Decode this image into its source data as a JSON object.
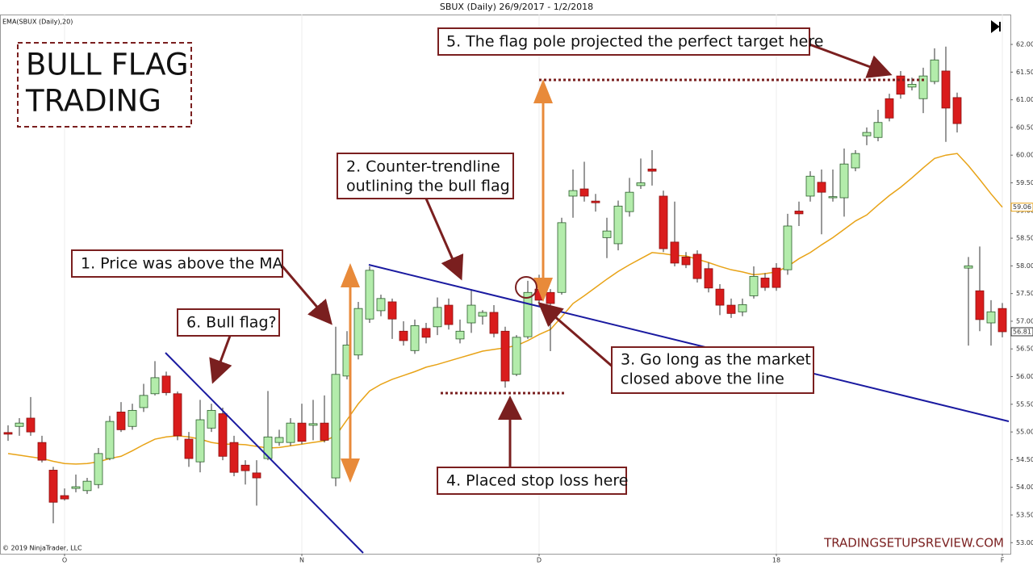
{
  "chart_data": {
    "type": "candlestick",
    "title": "SBUX (Daily)  26/9/2017 - 1/2/2018",
    "categories": [
      null,
      null,
      null,
      null,
      null,
      "O",
      null,
      null,
      null,
      null,
      null,
      null,
      null,
      null,
      null,
      null,
      null,
      null,
      null,
      null,
      null,
      null,
      null,
      null,
      null,
      null,
      "N",
      null,
      null,
      null,
      null,
      null,
      null,
      null,
      null,
      null,
      null,
      null,
      null,
      null,
      null,
      null,
      null,
      null,
      null,
      null,
      null,
      "D",
      null,
      null,
      null,
      null,
      null,
      null,
      null,
      null,
      null,
      null,
      null,
      null,
      null,
      null,
      null,
      null,
      null,
      null,
      null,
      null,
      "18",
      null,
      null,
      null,
      null,
      null,
      null,
      null,
      null,
      null,
      null,
      null,
      null,
      null,
      null,
      null,
      null,
      null,
      null,
      null,
      "F"
    ],
    "candles": {
      "up_color": "#b3ecab",
      "down_color": "#d91c1c",
      "open": [
        54.99,
        55.1,
        55.25,
        54.81,
        54.31,
        53.85,
        53.98,
        53.94,
        54.05,
        54.52,
        55.36,
        55.1,
        55.44,
        55.69,
        56.01,
        55.69,
        54.87,
        54.46,
        55.07,
        55.33,
        54.81,
        54.4,
        54.26,
        54.52,
        54.81,
        54.81,
        55.16,
        55.12,
        55.16,
        54.17,
        56.01,
        56.39,
        57.04,
        57.19,
        57.35,
        56.82,
        56.47,
        56.87,
        56.9,
        57.29,
        56.68,
        56.97,
        57.09,
        57.16,
        56.82,
        56.04,
        56.72,
        57.58,
        57.52,
        57.52,
        59.26,
        59.39,
        59.17,
        58.51,
        58.4,
        58.98,
        59.45,
        59.75,
        59.26,
        58.43,
        58.16,
        58.21,
        57.95,
        57.58,
        57.29,
        57.17,
        57.46,
        57.78,
        57.96,
        57.93,
        58.99,
        59.26,
        59.51,
        59.23,
        59.23,
        59.77,
        60.35,
        60.32,
        61.02,
        61.43,
        61.23,
        61.02,
        61.33,
        61.52,
        61.04,
        57.96,
        57.55,
        56.97,
        57.23
      ],
      "high": [
        55.12,
        55.25,
        55.63,
        54.93,
        54.37,
        53.98,
        54.23,
        54.17,
        54.71,
        55.29,
        55.54,
        55.51,
        55.87,
        56.28,
        56.09,
        55.73,
        55.0,
        55.58,
        55.51,
        55.44,
        54.93,
        54.49,
        54.49,
        55.74,
        55.04,
        55.25,
        55.51,
        55.58,
        55.66,
        56.9,
        56.82,
        57.35,
        57.99,
        57.48,
        57.41,
        57.0,
        57.03,
        56.97,
        57.43,
        57.41,
        57.03,
        57.58,
        57.2,
        57.29,
        56.9,
        56.75,
        57.73,
        57.84,
        57.58,
        58.87,
        59.74,
        59.88,
        59.3,
        58.87,
        59.18,
        59.59,
        59.94,
        60.09,
        59.36,
        59.16,
        58.25,
        58.28,
        58.06,
        57.67,
        57.41,
        57.41,
        57.99,
        57.87,
        58.05,
        58.94,
        59.16,
        59.71,
        59.74,
        59.74,
        60.12,
        60.09,
        60.5,
        60.82,
        61.11,
        61.52,
        61.4,
        61.58,
        61.93,
        61.96,
        61.13,
        58.16,
        58.35,
        57.38,
        57.33
      ],
      "low": [
        54.84,
        54.93,
        54.93,
        54.45,
        53.35,
        53.76,
        53.91,
        53.88,
        53.98,
        54.49,
        55.0,
        55.04,
        55.36,
        55.66,
        55.66,
        54.85,
        54.37,
        54.27,
        55.0,
        54.49,
        54.2,
        54.05,
        53.67,
        54.49,
        54.75,
        54.75,
        54.78,
        54.85,
        54.81,
        54.02,
        55.95,
        56.31,
        56.97,
        57.09,
        56.68,
        56.56,
        56.41,
        56.6,
        56.75,
        56.85,
        56.6,
        56.79,
        56.94,
        56.71,
        55.8,
        56.01,
        56.68,
        57.26,
        56.46,
        57.48,
        58.87,
        59.16,
        58.98,
        58.14,
        58.28,
        58.89,
        59.39,
        59.45,
        58.25,
        57.99,
        57.96,
        57.7,
        57.52,
        57.11,
        57.06,
        57.09,
        57.41,
        57.55,
        57.55,
        57.84,
        58.72,
        59.16,
        58.57,
        59.16,
        58.89,
        59.71,
        60.18,
        60.25,
        60.61,
        61.02,
        61.17,
        60.76,
        61.28,
        60.24,
        60.41,
        56.56,
        56.82,
        56.56,
        56.71
      ],
      "close": [
        54.96,
        55.16,
        55.0,
        54.49,
        53.73,
        53.79,
        54.01,
        54.11,
        54.61,
        55.19,
        55.04,
        55.39,
        55.66,
        55.98,
        55.71,
        54.93,
        54.52,
        55.22,
        55.39,
        54.56,
        54.27,
        54.3,
        54.17,
        54.91,
        54.9,
        55.16,
        54.83,
        55.15,
        54.85,
        56.04,
        56.57,
        57.23,
        57.92,
        57.41,
        57.04,
        56.65,
        56.92,
        56.71,
        57.25,
        56.94,
        56.82,
        57.29,
        57.16,
        56.78,
        55.92,
        56.71,
        57.52,
        57.38,
        57.32,
        58.78,
        59.36,
        59.26,
        59.14,
        58.63,
        59.08,
        59.33,
        59.5,
        59.71,
        58.31,
        58.05,
        58.02,
        57.77,
        57.6,
        57.29,
        57.14,
        57.3,
        57.81,
        57.61,
        57.61,
        58.72,
        58.94,
        59.62,
        59.33,
        59.25,
        59.84,
        60.03,
        60.41,
        60.59,
        60.67,
        61.1,
        61.28,
        61.43,
        61.72,
        60.85,
        60.57,
        58.0,
        57.03,
        57.17,
        56.81
      ]
    },
    "series": [
      {
        "name": "EMA(SBUX (Daily),20)",
        "color": "#e8a317",
        "values": [
          54.61,
          54.58,
          54.55,
          54.52,
          54.47,
          54.43,
          54.42,
          54.43,
          54.46,
          54.52,
          54.56,
          54.66,
          54.77,
          54.87,
          54.91,
          54.93,
          54.91,
          54.87,
          54.81,
          54.78,
          54.78,
          54.77,
          54.74,
          54.71,
          54.72,
          54.75,
          54.78,
          54.81,
          54.84,
          54.93,
          55.22,
          55.51,
          55.74,
          55.86,
          55.95,
          56.02,
          56.09,
          56.17,
          56.22,
          56.28,
          56.34,
          56.4,
          56.46,
          56.49,
          56.52,
          56.56,
          56.65,
          56.76,
          56.85,
          57.08,
          57.32,
          57.46,
          57.61,
          57.76,
          57.9,
          58.02,
          58.13,
          58.24,
          58.22,
          58.19,
          58.18,
          58.12,
          58.06,
          57.99,
          57.93,
          57.89,
          57.84,
          57.86,
          57.89,
          57.99,
          58.13,
          58.24,
          58.38,
          58.51,
          58.66,
          58.81,
          58.92,
          59.1,
          59.27,
          59.42,
          59.59,
          59.77,
          59.94,
          60.0,
          60.03,
          59.81,
          59.56,
          59.3,
          59.06
        ]
      }
    ],
    "ylim": [
      52.8,
      62.54
    ],
    "yticks": [
      {
        "value": 53,
        "label": "53.00"
      },
      {
        "value": 53.5,
        "label": "53.50"
      },
      {
        "value": 54,
        "label": "54.00"
      },
      {
        "value": 54.5,
        "label": "54.50"
      },
      {
        "value": 55,
        "label": "55.00"
      },
      {
        "value": 55.5,
        "label": "55.50"
      },
      {
        "value": 56,
        "label": "56.00"
      },
      {
        "value": 56.5,
        "label": "56.50"
      },
      {
        "value": 57,
        "label": "57.00"
      },
      {
        "value": 57.5,
        "label": "57.50"
      },
      {
        "value": 58,
        "label": "58.00"
      },
      {
        "value": 58.5,
        "label": "58.50"
      },
      {
        "value": 59,
        "label": "59.00"
      },
      {
        "value": 59.5,
        "label": "59.50"
      },
      {
        "value": 60,
        "label": "60.00"
      },
      {
        "value": 60.5,
        "label": "60.50"
      },
      {
        "value": 61,
        "label": "61.00"
      },
      {
        "value": 61.5,
        "label": "61.50"
      },
      {
        "value": 62,
        "label": "62.00"
      }
    ],
    "grid": true,
    "headline": [
      "BULL FLAG",
      "TRADING"
    ],
    "notes": [
      [
        "1. Price was above the MA"
      ],
      [
        "2. Counter-trendline",
        "outlining the bull flag"
      ],
      [
        "3. Go long as the market",
        "closed above the line"
      ],
      [
        "4. Placed stop loss here"
      ],
      [
        "5. The flag pole projected the perfect target here"
      ],
      [
        "6. Bull flag?"
      ]
    ],
    "copyright": "© 2019 NinjaTrader, LLC",
    "watermark": "TRADINGSETUPSREVIEW.COM"
  }
}
